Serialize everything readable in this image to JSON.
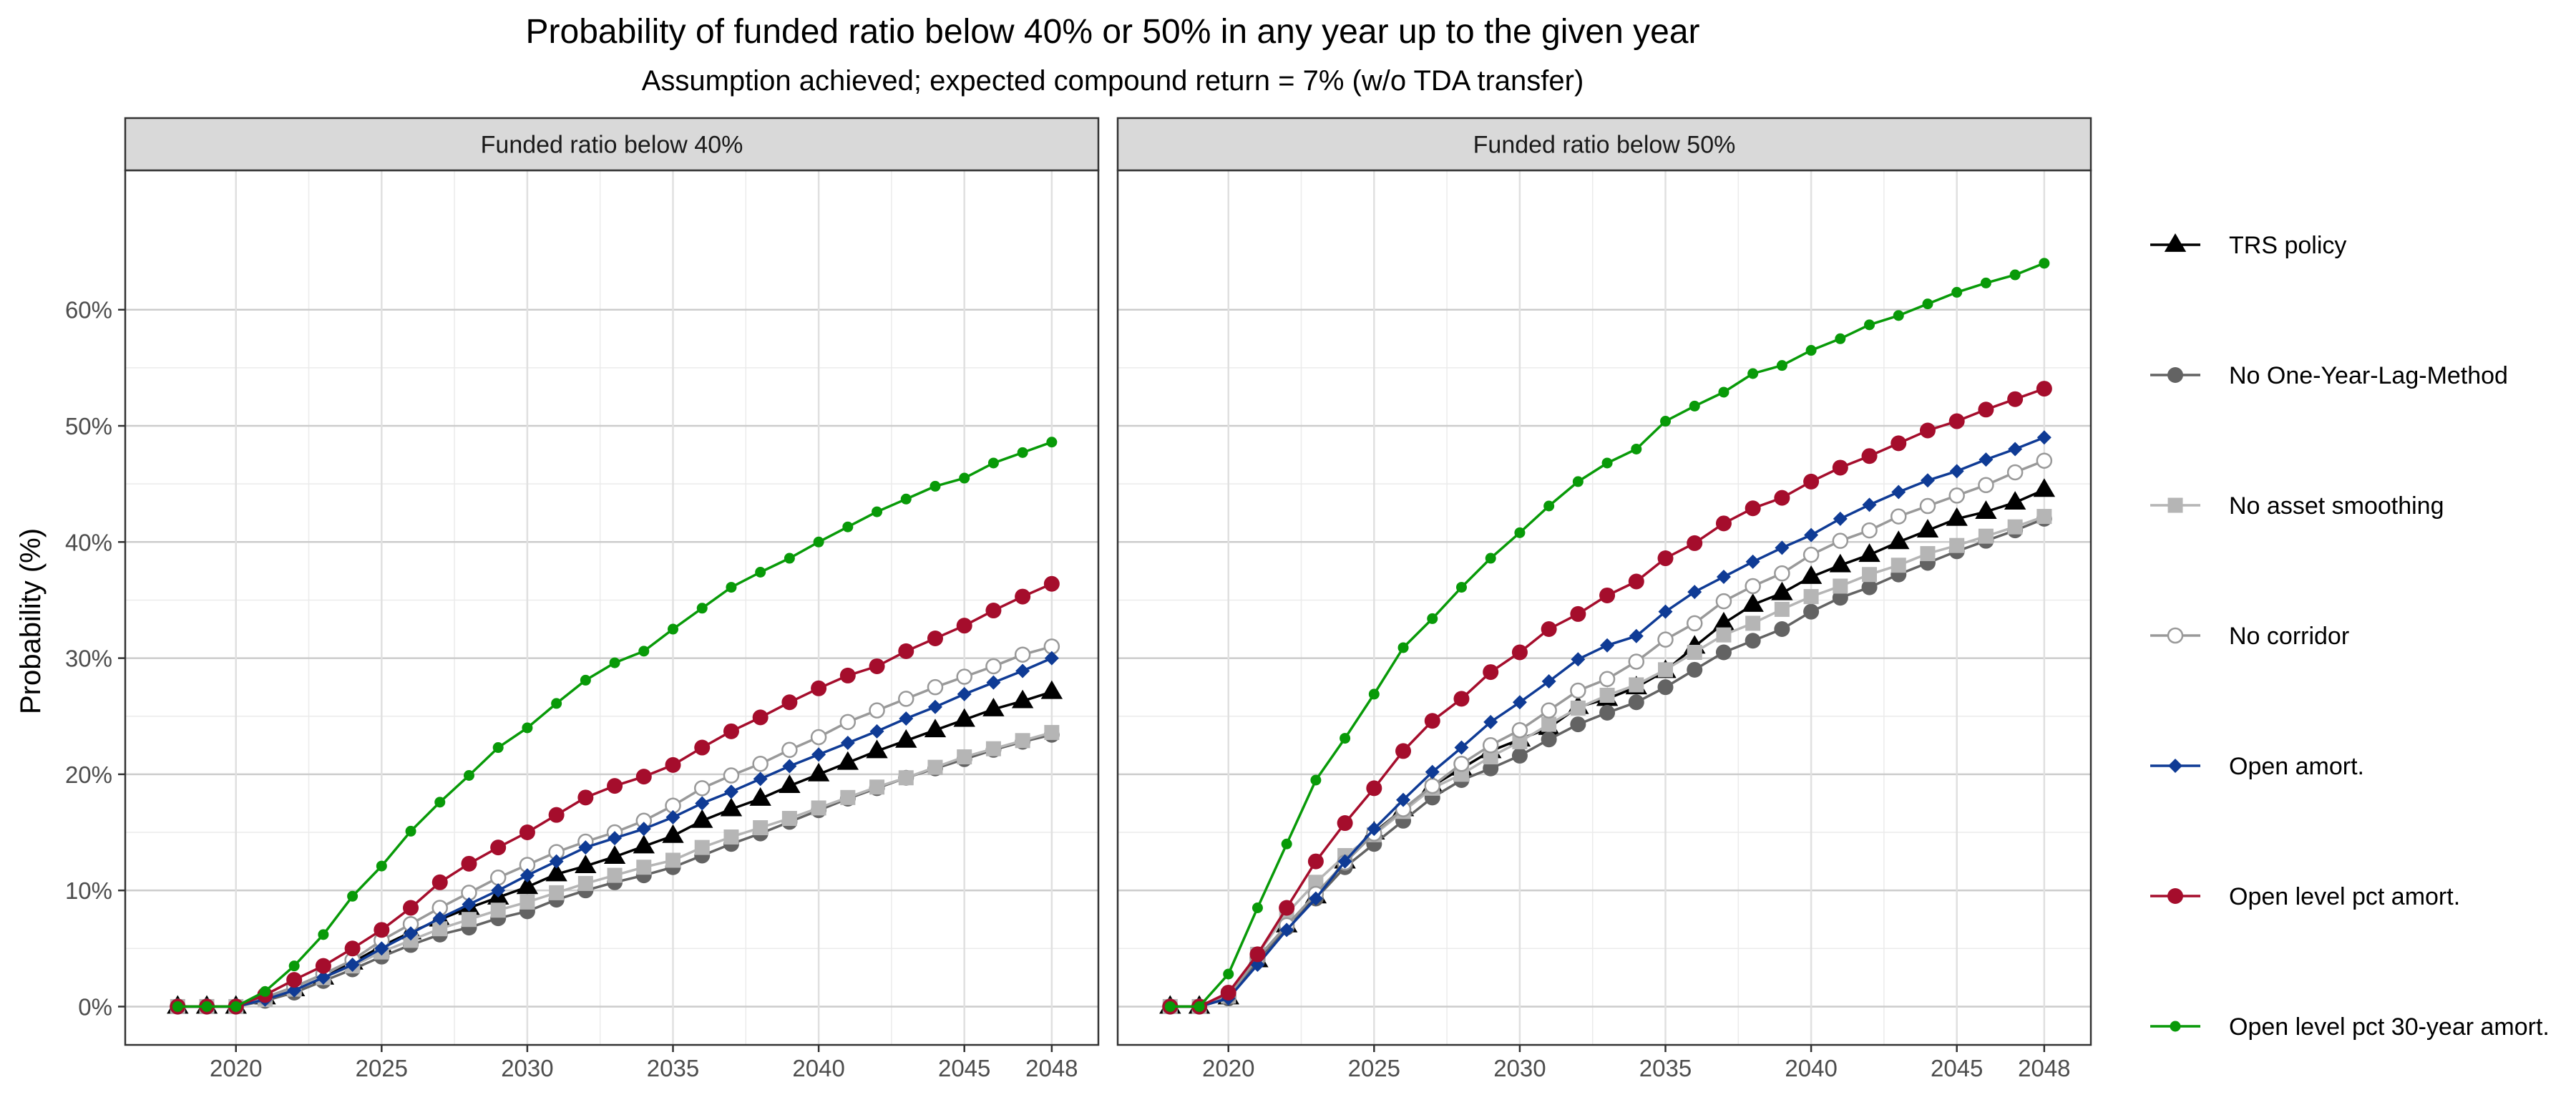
{
  "chart_data": {
    "type": "line",
    "title": "Probability of funded ratio below 40% or 50% in any year up to the given year",
    "subtitle": "Assumption achieved; expected compound return = 7% (w/o TDA transfer)",
    "ylabel": "Probability (%)",
    "xlabel": "",
    "x_ticks": [
      2020,
      2025,
      2030,
      2035,
      2040,
      2045,
      2048
    ],
    "y_ticks": [
      "0%",
      "10%",
      "20%",
      "30%",
      "40%",
      "50%",
      "60%"
    ],
    "y_tick_values": [
      0,
      10,
      20,
      30,
      40,
      50,
      60
    ],
    "xlim": [
      2016.2,
      2049.6
    ],
    "ylim": [
      -3.3,
      72
    ],
    "grid": true,
    "legend_position": "right",
    "x": [
      2018,
      2019,
      2020,
      2021,
      2022,
      2023,
      2024,
      2025,
      2026,
      2027,
      2028,
      2029,
      2030,
      2031,
      2032,
      2033,
      2034,
      2035,
      2036,
      2037,
      2038,
      2039,
      2040,
      2041,
      2042,
      2043,
      2044,
      2045,
      2046,
      2047,
      2048
    ],
    "series_styles": [
      {
        "name": "TRS policy",
        "color": "#000000",
        "marker": "triangle"
      },
      {
        "name": "No One-Year-Lag-Method",
        "color": "#636363",
        "marker": "circle"
      },
      {
        "name": "No asset smoothing",
        "color": "#b5b5b5",
        "marker": "square"
      },
      {
        "name": "No corridor",
        "color": "#999999",
        "marker": "open-circle"
      },
      {
        "name": "Open amort.",
        "color": "#0f3b95",
        "marker": "diamond"
      },
      {
        "name": "Open level pct amort.",
        "color": "#a50d2c",
        "marker": "circle"
      },
      {
        "name": "Open level pct 30-year amort.",
        "color": "#089a08",
        "marker": "small-circle"
      }
    ],
    "panels": [
      {
        "strip_label": "Funded ratio below 40%",
        "series": [
          {
            "name": "TRS policy",
            "values": [
              0,
              0,
              0,
              0.8,
              1.5,
              2.5,
              3.8,
              5.2,
              6.4,
              7.5,
              8.5,
              9.4,
              10.3,
              11.4,
              12.1,
              12.9,
              13.8,
              14.7,
              16.0,
              17.0,
              17.9,
              19.0,
              20.0,
              21.0,
              22.0,
              22.9,
              23.8,
              24.7,
              25.6,
              26.3,
              27.1
            ]
          },
          {
            "name": "No One-Year-Lag-Method",
            "values": [
              0,
              0,
              0,
              0.5,
              1.2,
              2.2,
              3.2,
              4.3,
              5.3,
              6.2,
              6.8,
              7.6,
              8.2,
              9.2,
              10.0,
              10.7,
              11.3,
              12.0,
              13.0,
              14.0,
              14.9,
              15.9,
              16.9,
              17.9,
              18.8,
              19.7,
              20.5,
              21.3,
              22.1,
              22.8,
              23.4
            ]
          },
          {
            "name": "No asset smoothing",
            "values": [
              0,
              0,
              0,
              0.6,
              1.5,
              2.5,
              3.5,
              4.7,
              5.7,
              6.7,
              7.5,
              8.3,
              9.0,
              9.8,
              10.6,
              11.3,
              12.0,
              12.6,
              13.7,
              14.6,
              15.4,
              16.2,
              17.1,
              18.0,
              18.9,
              19.7,
              20.6,
              21.5,
              22.2,
              22.9,
              23.6
            ]
          },
          {
            "name": "No corridor",
            "values": [
              0,
              0,
              0,
              0.8,
              1.7,
              2.8,
              4.0,
              5.7,
              7.1,
              8.5,
              9.8,
              11.1,
              12.2,
              13.3,
              14.2,
              15.0,
              16.0,
              17.3,
              18.8,
              19.9,
              20.9,
              22.1,
              23.2,
              24.5,
              25.5,
              26.5,
              27.5,
              28.4,
              29.3,
              30.3,
              31.0
            ]
          },
          {
            "name": "Open amort.",
            "values": [
              0,
              0,
              0,
              0.6,
              1.4,
              2.5,
              3.6,
              5.0,
              6.3,
              7.6,
              8.8,
              10.0,
              11.3,
              12.5,
              13.7,
              14.5,
              15.3,
              16.3,
              17.5,
              18.5,
              19.6,
              20.7,
              21.7,
              22.7,
              23.7,
              24.8,
              25.8,
              26.9,
              27.9,
              28.9,
              30.0
            ]
          },
          {
            "name": "Open level pct amort.",
            "values": [
              0,
              0,
              0,
              1.0,
              2.3,
              3.5,
              5.0,
              6.6,
              8.5,
              10.7,
              12.3,
              13.7,
              15.0,
              16.5,
              18.0,
              19.0,
              19.8,
              20.8,
              22.3,
              23.7,
              24.9,
              26.2,
              27.4,
              28.5,
              29.3,
              30.6,
              31.7,
              32.8,
              34.1,
              35.3,
              36.4
            ]
          },
          {
            "name": "Open level pct 30-year amort.",
            "values": [
              0,
              0,
              0,
              1.3,
              3.5,
              6.2,
              9.5,
              12.1,
              15.1,
              17.6,
              19.9,
              22.3,
              24.0,
              26.1,
              28.1,
              29.6,
              30.6,
              32.5,
              34.3,
              36.1,
              37.4,
              38.6,
              40.0,
              41.3,
              42.6,
              43.7,
              44.8,
              45.5,
              46.8,
              47.7,
              48.6
            ]
          }
        ]
      },
      {
        "strip_label": "Funded ratio below 50%",
        "series": [
          {
            "name": "TRS policy",
            "values": [
              0,
              0,
              0.8,
              4.0,
              7.0,
              9.5,
              12.5,
              15.0,
              17.0,
              19.0,
              20.5,
              22.0,
              23.0,
              24.0,
              25.8,
              26.5,
              27.5,
              28.9,
              31.0,
              33.0,
              34.6,
              35.6,
              37.0,
              38.0,
              38.9,
              40.0,
              41.0,
              42.0,
              42.6,
              43.4,
              44.5
            ]
          },
          {
            "name": "No One-Year-Lag-Method",
            "values": [
              0,
              0,
              0.7,
              4.0,
              6.8,
              9.3,
              12.0,
              14.0,
              16.0,
              18.0,
              19.5,
              20.5,
              21.6,
              23.0,
              24.3,
              25.3,
              26.2,
              27.5,
              29.0,
              30.5,
              31.5,
              32.5,
              34.0,
              35.2,
              36.1,
              37.2,
              38.2,
              39.2,
              40.1,
              41.0,
              42.0
            ]
          },
          {
            "name": "No asset smoothing",
            "values": [
              0,
              0,
              0.9,
              4.5,
              8.0,
              10.7,
              13.0,
              14.8,
              16.8,
              18.8,
              20.0,
              21.5,
              22.8,
              24.3,
              25.7,
              26.8,
              27.7,
              29.0,
              30.5,
              32.0,
              33.0,
              34.2,
              35.3,
              36.2,
              37.2,
              38.0,
              39.0,
              39.7,
              40.5,
              41.3,
              42.2
            ]
          },
          {
            "name": "No corridor",
            "values": [
              0,
              0,
              0.9,
              4.2,
              7.0,
              9.7,
              12.4,
              14.9,
              17.0,
              19.0,
              20.9,
              22.5,
              23.8,
              25.5,
              27.2,
              28.2,
              29.7,
              31.6,
              33.0,
              34.9,
              36.2,
              37.3,
              38.9,
              40.1,
              41.0,
              42.2,
              43.1,
              44.0,
              44.9,
              46.0,
              47.0
            ]
          },
          {
            "name": "Open amort.",
            "values": [
              0,
              0,
              0.7,
              3.6,
              6.6,
              9.3,
              12.5,
              15.3,
              17.8,
              20.2,
              22.3,
              24.5,
              26.2,
              28.0,
              29.9,
              31.1,
              31.9,
              34.0,
              35.7,
              37.0,
              38.3,
              39.5,
              40.6,
              42.0,
              43.2,
              44.3,
              45.3,
              46.1,
              47.1,
              48.0,
              49.0
            ]
          },
          {
            "name": "Open level pct amort.",
            "values": [
              0,
              0,
              1.2,
              4.5,
              8.5,
              12.5,
              15.8,
              18.8,
              22.0,
              24.6,
              26.5,
              28.8,
              30.5,
              32.5,
              33.8,
              35.4,
              36.6,
              38.6,
              39.9,
              41.6,
              42.9,
              43.8,
              45.2,
              46.4,
              47.4,
              48.5,
              49.6,
              50.4,
              51.4,
              52.3,
              53.2
            ]
          },
          {
            "name": "Open level pct 30-year amort.",
            "values": [
              0,
              0,
              2.8,
              8.5,
              14.0,
              19.5,
              23.1,
              26.9,
              30.9,
              33.4,
              36.1,
              38.6,
              40.8,
              43.1,
              45.2,
              46.8,
              48.0,
              50.4,
              51.7,
              52.9,
              54.5,
              55.2,
              56.5,
              57.5,
              58.7,
              59.5,
              60.5,
              61.5,
              62.3,
              63.0,
              64.0
            ]
          }
        ]
      }
    ]
  }
}
